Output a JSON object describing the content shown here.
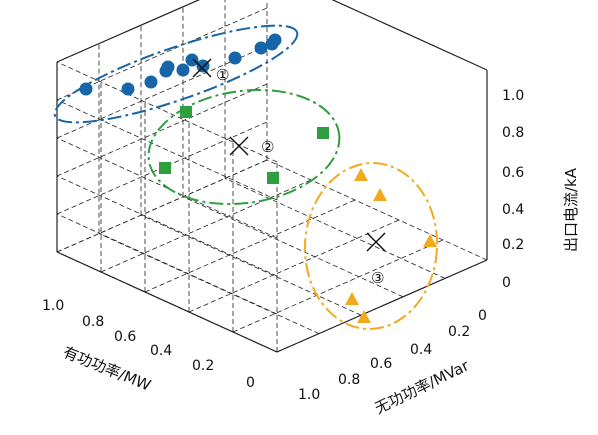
{
  "chart_data": {
    "type": "scatter",
    "title": "",
    "axes": {
      "x": {
        "label": "有功功率/MW",
        "ticks": [
          "0",
          "0.2",
          "0.4",
          "0.6",
          "0.8",
          "1.0"
        ],
        "range": [
          0,
          1
        ]
      },
      "y": {
        "label": "无功功率/MVar",
        "ticks": [
          "0",
          "0.2",
          "0.4",
          "0.6",
          "0.8",
          "1.0"
        ],
        "range": [
          0,
          1
        ]
      },
      "z": {
        "label": "出口电流/kA",
        "ticks": [
          "0",
          "0.2",
          "0.4",
          "0.6",
          "0.8",
          "1.0"
        ],
        "range": [
          0,
          1
        ]
      }
    },
    "grid": true,
    "clusters": [
      {
        "label": "①",
        "marker": "circle",
        "color": "#1565a8",
        "ellipse_color": "#1565a8",
        "points_screen_order": 12
      },
      {
        "label": "②",
        "marker": "square",
        "color": "#2e9e3e",
        "ellipse_color": "#2e9e3e",
        "points_screen_order": 4
      },
      {
        "label": "③",
        "marker": "triangle",
        "color": "#f2a91e",
        "ellipse_color": "#f2a91e",
        "points_screen_order": 5
      }
    ]
  }
}
